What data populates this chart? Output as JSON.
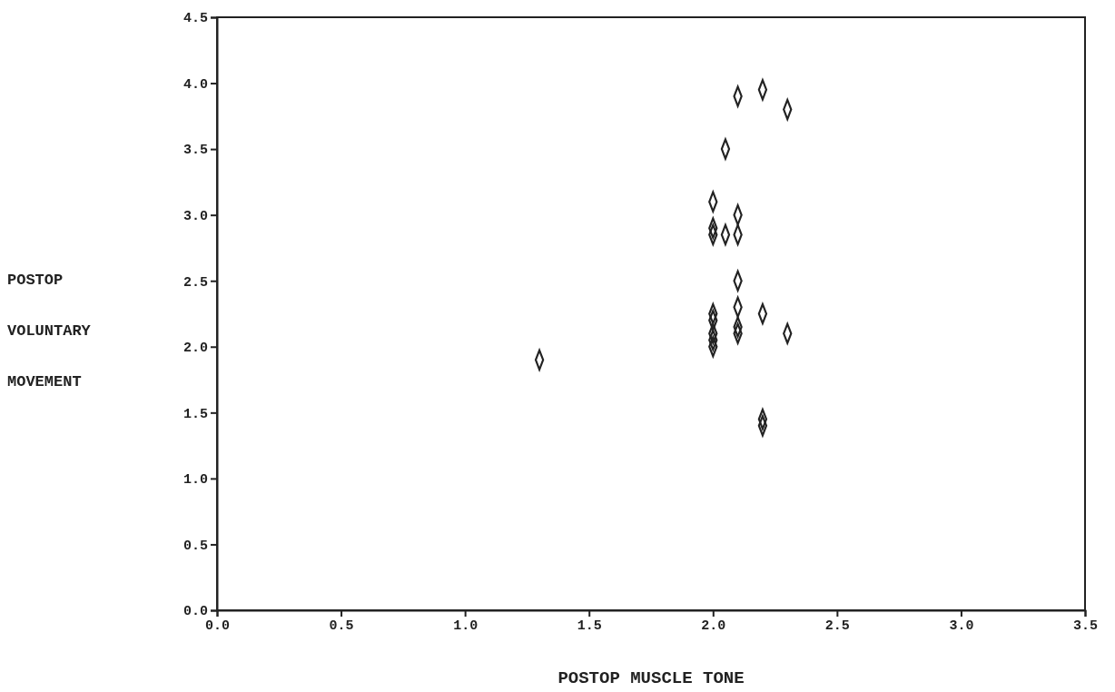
{
  "chart_data": {
    "type": "scatter",
    "xlabel": "POSTOP MUSCLE TONE",
    "ylabel": "POSTOP\nVOLUNTARY\nMOVEMENT",
    "x": [
      1.3,
      2.0,
      2.0,
      2.0,
      2.0,
      2.0,
      2.0,
      2.0,
      2.0,
      2.05,
      2.05,
      2.1,
      2.1,
      2.1,
      2.1,
      2.1,
      2.1,
      2.1,
      2.2,
      2.2,
      2.2,
      2.2,
      2.3,
      2.3
    ],
    "values": [
      1.9,
      3.1,
      2.9,
      2.85,
      2.25,
      2.2,
      2.1,
      2.05,
      2.0,
      3.5,
      2.85,
      3.9,
      3.0,
      2.85,
      2.5,
      2.3,
      2.15,
      2.1,
      3.95,
      2.25,
      1.45,
      1.4,
      3.8,
      2.1
    ],
    "color": "#222222",
    "marker": "diamond",
    "xlim": [
      0,
      3.5
    ],
    "xticks": [
      {
        "value": 0,
        "label": "0.0"
      },
      {
        "value": 0.5,
        "label": "0.5"
      },
      {
        "value": 1,
        "label": "1.0"
      },
      {
        "value": 1.5,
        "label": "1.5"
      },
      {
        "value": 2,
        "label": "2.0"
      },
      {
        "value": 2.5,
        "label": "2.5"
      },
      {
        "value": 3,
        "label": "3.0"
      },
      {
        "value": 3.5,
        "label": "3.5"
      }
    ],
    "ylim": [
      0,
      4.5
    ],
    "yticks": [
      {
        "value": 0,
        "label": "0.0"
      },
      {
        "value": 0.5,
        "label": "0.5"
      },
      {
        "value": 1,
        "label": "1.0"
      },
      {
        "value": 1.5,
        "label": "1.5"
      },
      {
        "value": 2,
        "label": "2.0"
      },
      {
        "value": 2.5,
        "label": "2.5"
      },
      {
        "value": 3,
        "label": "3.0"
      },
      {
        "value": 3.5,
        "label": "3.5"
      },
      {
        "value": 4,
        "label": "4.0"
      },
      {
        "value": 4.5,
        "label": "4.5"
      }
    ],
    "grid": false
  }
}
